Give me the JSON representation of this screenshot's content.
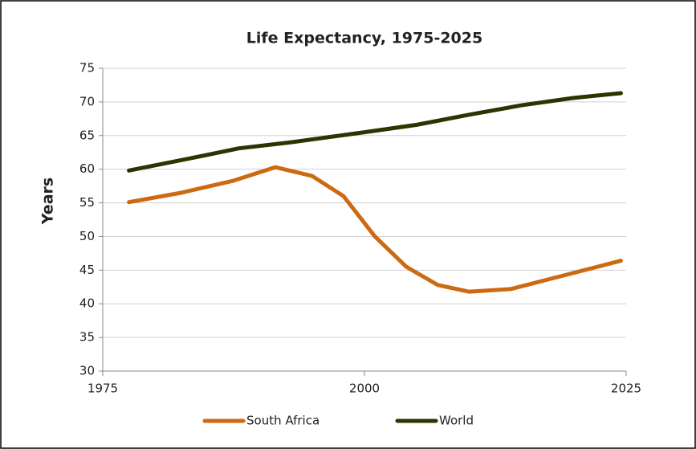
{
  "chart_data": {
    "type": "line",
    "title": "Life Expectancy, 1975-2025",
    "y_label": "Years",
    "xlim": [
      1975,
      2025
    ],
    "xticks": [
      1975,
      2000,
      2025
    ],
    "ylim": [
      30,
      75
    ],
    "yticks": [
      30,
      35,
      40,
      45,
      50,
      55,
      60,
      65,
      70,
      75
    ],
    "grid": true,
    "legend": "bottom",
    "series": [
      {
        "name": "South Africa",
        "color": "#cc6a12",
        "x": [
          1977.5,
          1982.5,
          1987.5,
          1991.5,
          1995,
          1998,
          2001,
          2004,
          2007,
          2010,
          2014,
          2018,
          2024.5
        ],
        "values": [
          55.1,
          56.5,
          58.3,
          60.3,
          59,
          56,
          50,
          45.5,
          42.8,
          41.8,
          42.2,
          43.8,
          46.4
        ]
      },
      {
        "name": "World",
        "color": "#2e3300",
        "x": [
          1977.5,
          1983,
          1988,
          1993,
          2000,
          2005,
          2010,
          2015,
          2020,
          2024.5
        ],
        "values": [
          59.8,
          61.5,
          63.1,
          64,
          65.5,
          66.6,
          68.1,
          69.5,
          70.6,
          71.3
        ]
      }
    ]
  }
}
